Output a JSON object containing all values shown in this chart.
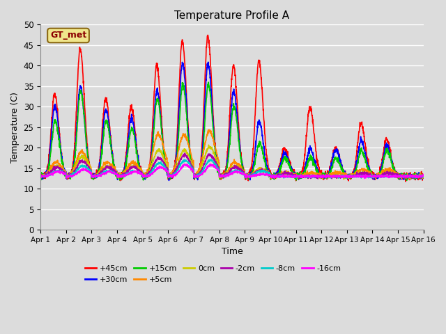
{
  "title": "Temperature Profile A",
  "xlabel": "Time",
  "ylabel": "Temperature (C)",
  "ylim": [
    0,
    50
  ],
  "xlim": [
    0,
    15
  ],
  "bg_color": "#dcdcdc",
  "plot_bg_color": "#dcdcdc",
  "grid_color": "white",
  "annotation_text": "GT_met",
  "annotation_bg": "#f0e68c",
  "annotation_border": "#8b6914",
  "series": {
    "+45cm": {
      "color": "#ff0000",
      "lw": 1.2
    },
    "+30cm": {
      "color": "#0000ff",
      "lw": 1.2
    },
    "+15cm": {
      "color": "#00cc00",
      "lw": 1.2
    },
    "+5cm": {
      "color": "#ff8800",
      "lw": 1.2
    },
    "0cm": {
      "color": "#cccc00",
      "lw": 1.2
    },
    "-2cm": {
      "color": "#aa00aa",
      "lw": 1.2
    },
    "-8cm": {
      "color": "#00cccc",
      "lw": 1.2
    },
    "-16cm": {
      "color": "#ff00ff",
      "lw": 1.2
    }
  },
  "xtick_labels": [
    "Apr 1",
    "Apr 2",
    "Apr 3",
    "Apr 4",
    "Apr 5",
    "Apr 6",
    "Apr 7",
    "Apr 8",
    "Apr 9",
    "Apr 10",
    "Apr 11",
    "Apr 12",
    "Apr 13",
    "Apr 14",
    "Apr 15",
    "Apr 16"
  ],
  "xtick_positions": [
    0,
    1,
    2,
    3,
    4,
    5,
    6,
    7,
    8,
    9,
    10,
    11,
    12,
    13,
    14,
    15
  ],
  "ytick_positions": [
    0,
    5,
    10,
    15,
    20,
    25,
    30,
    35,
    40,
    45,
    50
  ],
  "day_peaks_45": [
    33,
    44,
    32,
    30,
    40,
    46,
    47,
    40,
    41,
    20,
    30,
    20,
    26,
    22
  ],
  "day_peaks_30": [
    31,
    36,
    30,
    28,
    35,
    42,
    42,
    35,
    27,
    19,
    20,
    20,
    22,
    21
  ],
  "day_peaks_15": [
    28,
    36,
    28,
    26,
    34,
    38,
    38,
    32,
    22,
    18,
    18,
    18,
    20,
    20
  ],
  "day_peaks_5": [
    17,
    20,
    17,
    17,
    25,
    25,
    26,
    17,
    15,
    14,
    14,
    14,
    15,
    15
  ],
  "day_peaks_0": [
    16,
    19,
    16,
    16,
    21,
    21,
    22,
    16,
    15,
    14,
    13,
    13,
    14,
    14
  ],
  "day_peaks_m2": [
    16,
    18,
    16,
    16,
    19,
    20,
    20,
    16,
    15,
    14,
    13,
    13,
    14,
    14
  ],
  "day_peaks_m8": [
    15,
    17,
    15,
    15,
    18,
    19,
    19,
    15,
    15,
    13,
    13,
    13,
    13,
    13
  ],
  "day_peaks_m16": [
    15,
    16,
    15,
    15,
    17,
    18,
    18,
    15,
    14,
    13,
    13,
    13,
    13,
    13
  ],
  "baseline": 13.0
}
